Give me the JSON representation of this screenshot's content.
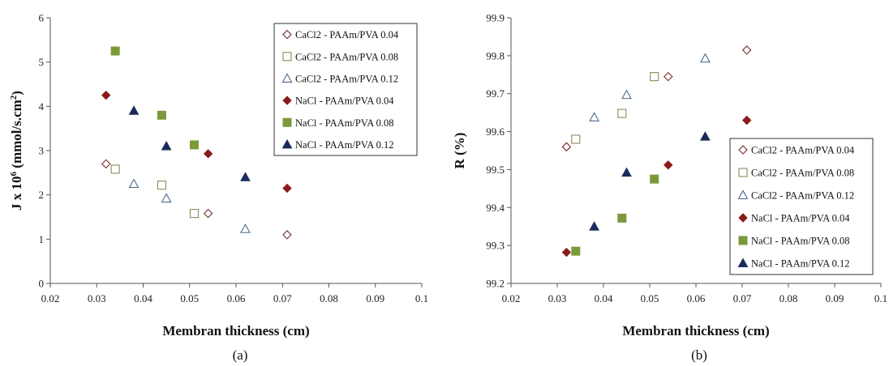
{
  "chart_data": [
    {
      "type": "scatter",
      "caption": "(a)",
      "xlabel": "Membran thickness (cm)",
      "ylabel_main": "J x 10",
      "ylabel_sup": "6",
      "ylabel_rest": " (mmol/s.cm",
      "ylabel_sup2": "2",
      "ylabel_end": ")",
      "xlim": [
        0.02,
        0.1
      ],
      "ylim": [
        0,
        6
      ],
      "xticks": [
        0.02,
        0.03,
        0.04,
        0.05,
        0.06,
        0.07,
        0.08,
        0.09,
        0.1
      ],
      "xtick_labels": [
        "0.02",
        "0.03",
        "0.04",
        "0.05",
        "0.06",
        "0.07",
        "0.08",
        "0.09",
        "0.1"
      ],
      "yticks": [
        0,
        1,
        2,
        3,
        4,
        5,
        6
      ],
      "ytick_labels": [
        "0",
        "1",
        "2",
        "3",
        "4",
        "5",
        "6"
      ],
      "legend_position": "top-right",
      "grid": false,
      "series": [
        {
          "name": "CaCl2 - PAAm/PVA 0.04",
          "marker": "diamond-open",
          "color": "#7a2a2a",
          "points": [
            [
              0.032,
              2.7
            ],
            [
              0.054,
              1.58
            ],
            [
              0.071,
              1.1
            ]
          ]
        },
        {
          "name": "CaCl2 - PAAm/PVA 0.08",
          "marker": "square-open",
          "color": "#8b8b5a",
          "points": [
            [
              0.034,
              2.58
            ],
            [
              0.044,
              2.22
            ],
            [
              0.051,
              1.58
            ]
          ]
        },
        {
          "name": "CaCl2 - PAAm/PVA 0.12",
          "marker": "triangle-open",
          "color": "#4a6a8a",
          "points": [
            [
              0.038,
              2.25
            ],
            [
              0.045,
              1.92
            ],
            [
              0.062,
              1.23
            ]
          ]
        },
        {
          "name": "NaCl - PAAm/PVA 0.04",
          "marker": "diamond-filled",
          "color": "#8b1a1a",
          "points": [
            [
              0.032,
              4.25
            ],
            [
              0.054,
              2.93
            ],
            [
              0.071,
              2.15
            ]
          ]
        },
        {
          "name": "NaCl - PAAm/PVA 0.08",
          "marker": "square-filled",
          "color": "#7a9a3a",
          "points": [
            [
              0.034,
              5.25
            ],
            [
              0.044,
              3.8
            ],
            [
              0.051,
              3.13
            ]
          ]
        },
        {
          "name": "NaCl - PAAm/PVA 0.12",
          "marker": "triangle-filled",
          "color": "#1a2a5a",
          "points": [
            [
              0.038,
              3.9
            ],
            [
              0.045,
              3.1
            ],
            [
              0.062,
              2.4
            ]
          ]
        }
      ]
    },
    {
      "type": "scatter",
      "caption": "(b)",
      "xlabel": "Membran thickness (cm)",
      "ylabel": "R (%)",
      "xlim": [
        0.02,
        0.1
      ],
      "ylim": [
        99.2,
        99.9
      ],
      "xticks": [
        0.02,
        0.03,
        0.04,
        0.05,
        0.06,
        0.07,
        0.08,
        0.09,
        0.1
      ],
      "xtick_labels": [
        "0.02",
        "0.03",
        "0.04",
        "0.05",
        "0.06",
        "0.07",
        "0.08",
        "0.09",
        "0.1"
      ],
      "yticks": [
        99.2,
        99.3,
        99.4,
        99.5,
        99.6,
        99.7,
        99.8,
        99.9
      ],
      "ytick_labels": [
        "99.2",
        "99.3",
        "99.4",
        "99.5",
        "99.6",
        "99.7",
        "99.8",
        "99.9"
      ],
      "legend_position": "bottom-right",
      "grid": false,
      "series": [
        {
          "name": "CaCl2 - PAAm/PVA 0.04",
          "marker": "diamond-open",
          "color": "#7a2a2a",
          "points": [
            [
              0.032,
              99.56
            ],
            [
              0.054,
              99.745
            ],
            [
              0.071,
              99.815
            ]
          ]
        },
        {
          "name": "CaCl2 - PAAm/PVA 0.08",
          "marker": "square-open",
          "color": "#8b8b5a",
          "points": [
            [
              0.034,
              99.58
            ],
            [
              0.044,
              99.648
            ],
            [
              0.051,
              99.745
            ]
          ]
        },
        {
          "name": "CaCl2 - PAAm/PVA 0.12",
          "marker": "triangle-open",
          "color": "#4a6a8a",
          "points": [
            [
              0.038,
              99.638
            ],
            [
              0.045,
              99.697
            ],
            [
              0.062,
              99.793
            ]
          ]
        },
        {
          "name": "NaCl - PAAm/PVA 0.04",
          "marker": "diamond-filled",
          "color": "#8b1a1a",
          "points": [
            [
              0.032,
              99.282
            ],
            [
              0.054,
              99.512
            ],
            [
              0.071,
              99.63
            ]
          ]
        },
        {
          "name": "NaCl - PAAm/PVA 0.08",
          "marker": "square-filled",
          "color": "#7a9a3a",
          "points": [
            [
              0.034,
              99.285
            ],
            [
              0.044,
              99.372
            ],
            [
              0.051,
              99.475
            ]
          ]
        },
        {
          "name": "NaCl - PAAm/PVA 0.12",
          "marker": "triangle-filled",
          "color": "#1a2a5a",
          "points": [
            [
              0.038,
              99.35
            ],
            [
              0.045,
              99.492
            ],
            [
              0.062,
              99.587
            ]
          ]
        }
      ]
    }
  ]
}
